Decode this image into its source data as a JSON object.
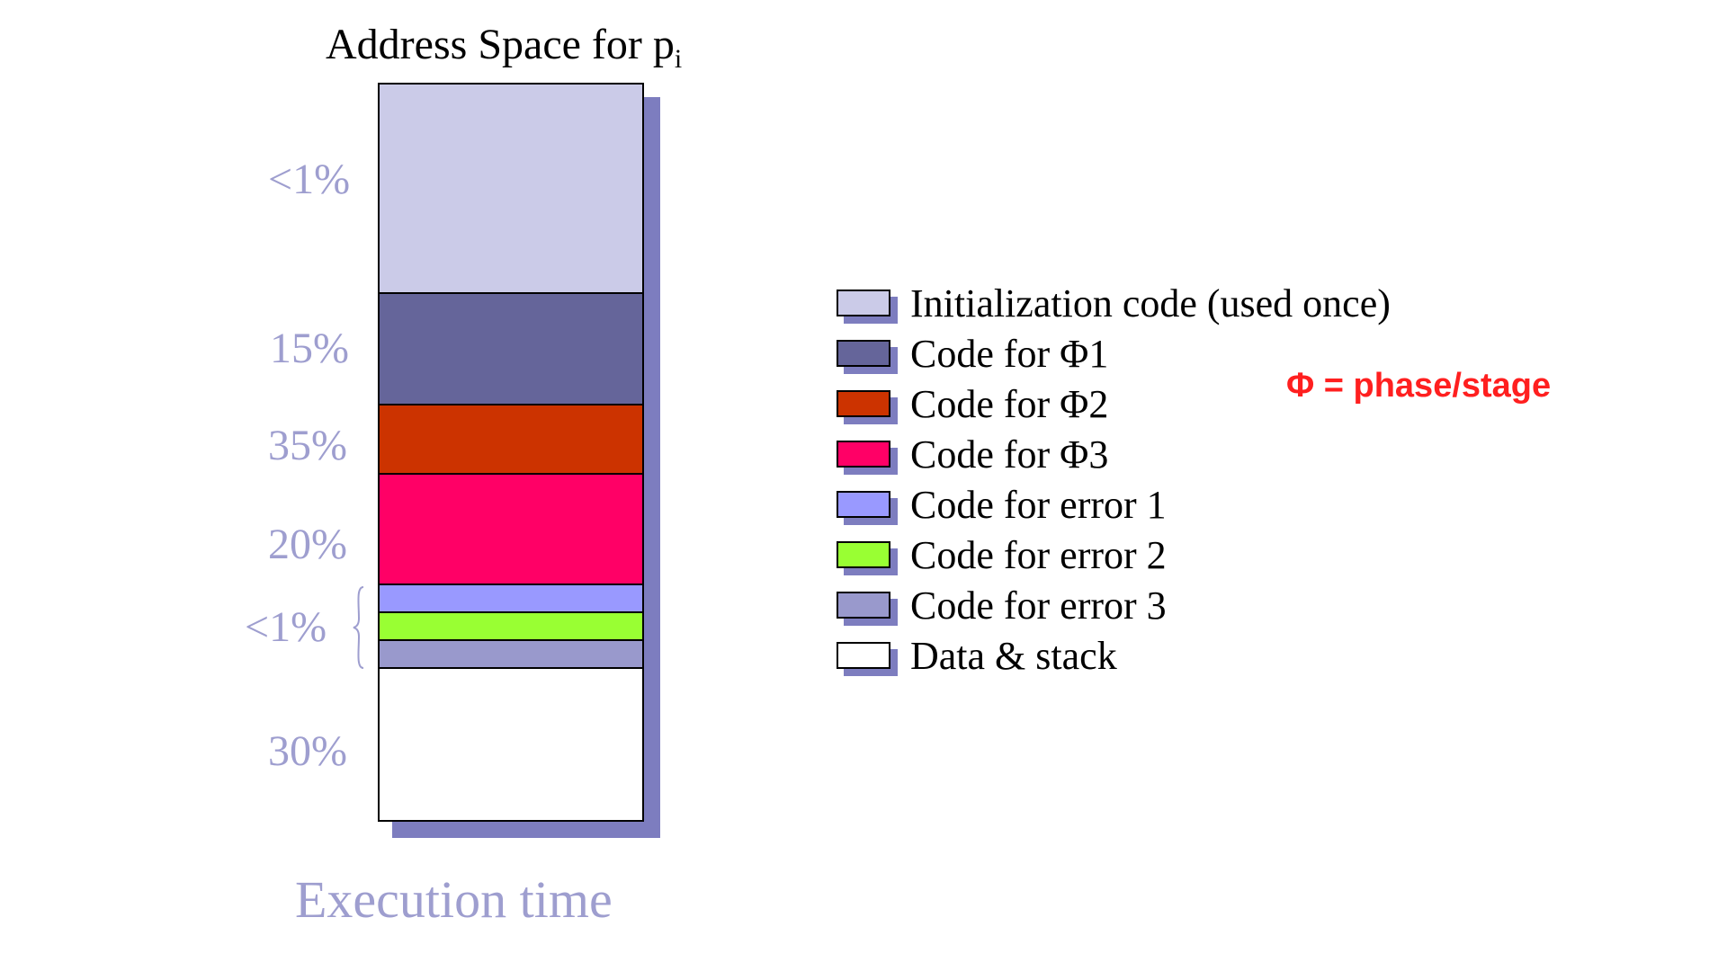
{
  "title": {
    "text": "Address Space for p",
    "subscript": "i"
  },
  "x_label": "Execution time",
  "note": "Φ = phase/stage",
  "colors": {
    "shadow": "#7d7dbf",
    "percent_text": "#9e9ecf",
    "note": "#ff1f1f"
  },
  "segments": [
    {
      "name": "init",
      "color": "#cbcbe8",
      "share": 0.283
    },
    {
      "name": "phase1",
      "color": "#65659a",
      "share": 0.151
    },
    {
      "name": "phase2",
      "color": "#cc3300",
      "share": 0.094
    },
    {
      "name": "phase3",
      "color": "#ff0066",
      "share": 0.151
    },
    {
      "name": "error1",
      "color": "#9999ff",
      "share": 0.037
    },
    {
      "name": "error2",
      "color": "#99ff33",
      "share": 0.038
    },
    {
      "name": "error3",
      "color": "#9999cc",
      "share": 0.038
    },
    {
      "name": "data",
      "color": "#ffffff",
      "share": 0.208
    }
  ],
  "percent_labels": [
    {
      "text": "<1%"
    },
    {
      "text": "15%"
    },
    {
      "text": "35%"
    },
    {
      "text": "20%"
    },
    {
      "text": "<1%"
    },
    {
      "text": "30%"
    }
  ],
  "legend": [
    {
      "label": "Initialization code (used once)",
      "color": "#cbcbe8"
    },
    {
      "label": "Code for Φ1",
      "color": "#65659a"
    },
    {
      "label": "Code for Φ2",
      "color": "#cc3300"
    },
    {
      "label": "Code for Φ3",
      "color": "#ff0066"
    },
    {
      "label": "Code for error 1",
      "color": "#9999ff"
    },
    {
      "label": "Code for error 2",
      "color": "#99ff33"
    },
    {
      "label": "Code for error 3",
      "color": "#9999cc"
    },
    {
      "label": "Data & stack",
      "color": "#ffffff"
    }
  ]
}
